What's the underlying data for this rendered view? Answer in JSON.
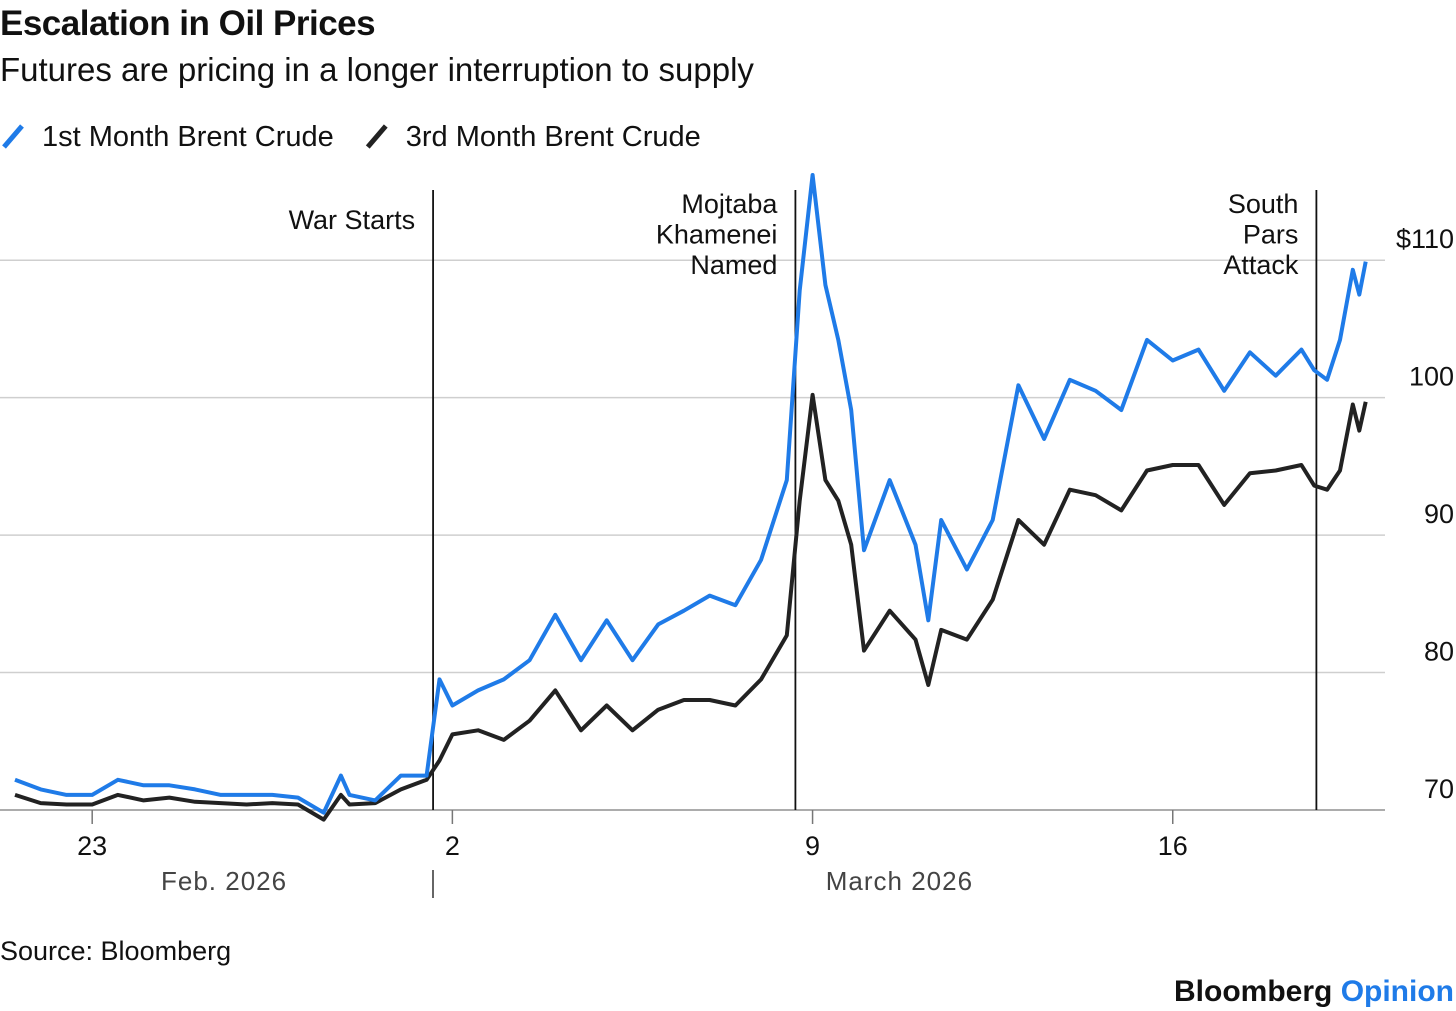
{
  "chart_data": {
    "type": "line",
    "title": "Escalation in Oil Prices",
    "subtitle": "Futures are pricing in a longer interruption to supply",
    "source": "Source: Bloomberg",
    "brand": [
      "Bloomberg",
      "Opinion"
    ],
    "month_labels": [
      "Feb. 2026",
      "March 2026"
    ],
    "x": [
      "2026-02-21T12:00",
      "2026-02-22T00:00",
      "2026-02-22T12:00",
      "2026-02-23T00:00",
      "2026-02-23T12:00",
      "2026-02-24T00:00",
      "2026-02-24T12:00",
      "2026-02-25T00:00",
      "2026-02-25T12:00",
      "2026-02-26T00:00",
      "2026-02-26T12:00",
      "2026-02-27T00:00",
      "2026-02-27T12:00",
      "2026-02-27T20:00",
      "2026-02-28T00:00",
      "2026-02-28T12:00",
      "2026-03-01T00:00",
      "2026-03-01T12:00",
      "2026-03-01T18:00",
      "2026-03-02T00:00",
      "2026-03-02T12:00",
      "2026-03-03T00:00",
      "2026-03-03T12:00",
      "2026-03-04T00:00",
      "2026-03-04T12:00",
      "2026-03-05T00:00",
      "2026-03-05T12:00",
      "2026-03-06T00:00",
      "2026-03-06T12:00",
      "2026-03-07T00:00",
      "2026-03-07T12:00",
      "2026-03-08T00:00",
      "2026-03-08T12:00",
      "2026-03-08T18:00",
      "2026-03-09T00:00",
      "2026-03-09T06:00",
      "2026-03-09T12:00",
      "2026-03-09T18:00",
      "2026-03-10T00:00",
      "2026-03-10T12:00",
      "2026-03-11T00:00",
      "2026-03-11T06:00",
      "2026-03-11T12:00",
      "2026-03-12T00:00",
      "2026-03-12T12:00",
      "2026-03-13T00:00",
      "2026-03-13T12:00",
      "2026-03-14T00:00",
      "2026-03-14T12:00",
      "2026-03-15T00:00",
      "2026-03-15T12:00",
      "2026-03-16T00:00",
      "2026-03-16T12:00",
      "2026-03-17T00:00",
      "2026-03-17T12:00",
      "2026-03-18T00:00",
      "2026-03-18T12:00",
      "2026-03-18T18:00",
      "2026-03-19T00:00",
      "2026-03-19T06:00",
      "2026-03-19T12:00",
      "2026-03-19T15:00",
      "2026-03-19T18:00"
    ],
    "series": [
      {
        "name": "1st Month Brent Crude",
        "color": "#1f7be8",
        "values": [
          72.2,
          71.5,
          71.1,
          71.1,
          72.2,
          71.8,
          71.8,
          71.5,
          71.1,
          71.1,
          71.1,
          70.9,
          69.8,
          72.5,
          71.1,
          70.7,
          72.5,
          72.5,
          79.5,
          77.6,
          78.7,
          79.5,
          80.9,
          84.2,
          80.9,
          83.8,
          80.9,
          83.5,
          84.5,
          85.6,
          84.9,
          88.2,
          94.0,
          107.8,
          116.2,
          108.2,
          104.2,
          99.1,
          88.9,
          94.0,
          89.3,
          83.8,
          91.1,
          87.5,
          91.1,
          100.9,
          97.0,
          101.3,
          100.5,
          99.1,
          104.2,
          102.7,
          103.5,
          100.5,
          103.3,
          101.6,
          103.5,
          102.0,
          101.3,
          104.2,
          109.3,
          107.5,
          109.9
        ]
      },
      {
        "name": "3rd Month Brent Crude",
        "color": "#222222",
        "values": [
          71.1,
          70.5,
          70.4,
          70.4,
          71.1,
          70.7,
          70.9,
          70.6,
          70.5,
          70.4,
          70.5,
          70.4,
          69.3,
          71.1,
          70.4,
          70.5,
          71.5,
          72.2,
          73.6,
          75.5,
          75.8,
          75.1,
          76.5,
          78.7,
          75.8,
          77.6,
          75.8,
          77.3,
          78.0,
          78.0,
          77.6,
          79.5,
          82.7,
          92.5,
          100.2,
          94.0,
          92.5,
          89.3,
          81.6,
          84.5,
          82.4,
          79.1,
          83.1,
          82.4,
          85.3,
          91.1,
          89.3,
          93.3,
          92.9,
          91.8,
          94.7,
          95.1,
          95.1,
          92.2,
          94.5,
          94.7,
          95.1,
          93.6,
          93.3,
          94.7,
          99.5,
          97.6,
          99.7
        ]
      }
    ],
    "xlim": [
      "2026-02-21T05:00",
      "2026-03-20T03:00"
    ],
    "xticks": [
      {
        "value": "2026-02-23",
        "label": "23"
      },
      {
        "value": "2026-03-02",
        "label": "2"
      },
      {
        "value": "2026-03-09",
        "label": "9"
      },
      {
        "value": "2026-03-16",
        "label": "16"
      }
    ],
    "ylim": [
      70,
      117
    ],
    "yticks": [
      70,
      80,
      90,
      100,
      {
        "value": 110,
        "label": "$110"
      }
    ],
    "grid": true,
    "annotations": [
      {
        "x": "2026-03-01T15:00",
        "text": [
          "War Starts"
        ]
      },
      {
        "x": "2026-03-08T16:00",
        "text": [
          "Mojtaba",
          "Khamenei",
          "Named"
        ]
      },
      {
        "x": "2026-03-18T19:00",
        "text": [
          "South",
          "Pars",
          "Attack"
        ]
      }
    ]
  }
}
